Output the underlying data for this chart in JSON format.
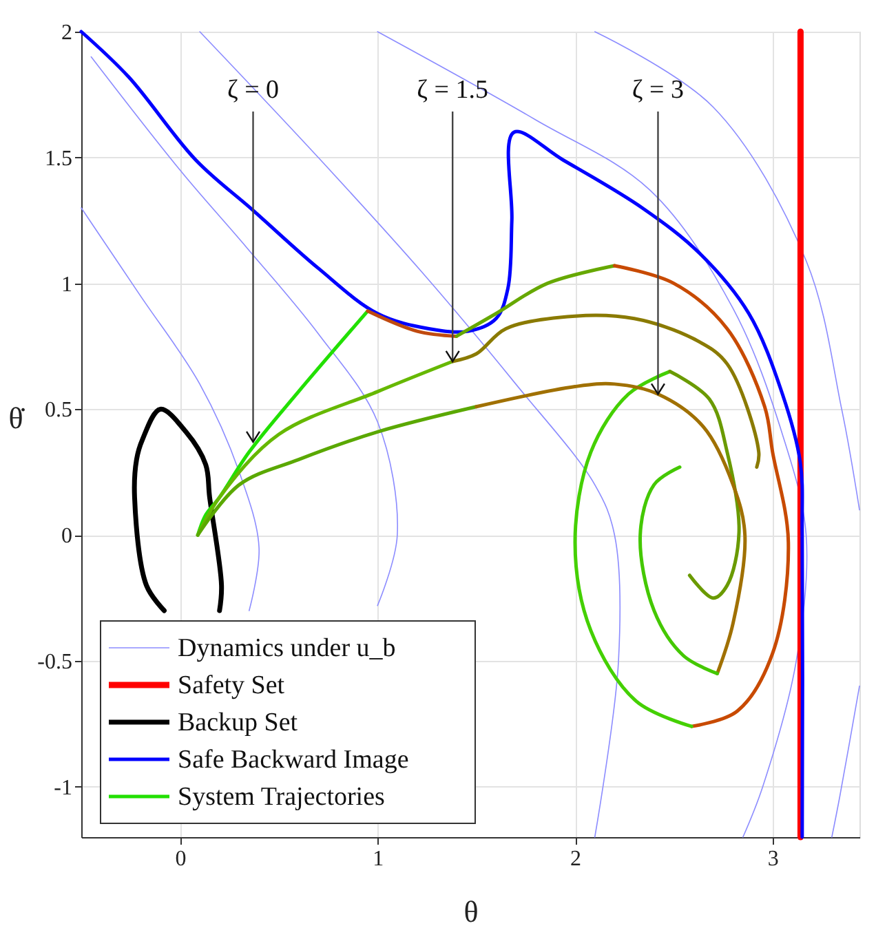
{
  "chart_data": {
    "type": "line",
    "xlabel": "θ",
    "ylabel": "θ̇",
    "xlim": [
      -0.5,
      3.44
    ],
    "ylim": [
      -1.2,
      2
    ],
    "xticks": [
      0,
      1,
      2,
      3
    ],
    "yticks": [
      -1,
      -0.5,
      0,
      0.5,
      1,
      1.5,
      2
    ],
    "grid": true,
    "legend": "bottom left",
    "line_style": "solid",
    "marker": "none",
    "annotations": [
      {
        "text": "ζ = 0",
        "x": 0.37,
        "y": 0.37
      },
      {
        "text": "ζ = 1.5",
        "x": 1.38,
        "y": 0.69
      },
      {
        "text": "ζ = 3",
        "x": 2.42,
        "y": 0.56
      }
    ],
    "series": [
      {
        "name": "Dynamics under u_b",
        "color": "#8c8cff",
        "x": [
          -0.45,
          0.0,
          0.34,
          0.7,
          1.0,
          1.1,
          1.0
        ],
        "values": [
          1.9,
          1.45,
          1.14,
          0.8,
          0.45,
          0.0,
          -0.28
        ]
      },
      {
        "color": "#8c8cff",
        "x": [
          0.1,
          0.7,
          1.23,
          1.7,
          2.1,
          2.2,
          2.22,
          2.1
        ],
        "values": [
          2.0,
          1.5,
          1.04,
          0.6,
          0.2,
          0.0,
          -0.5,
          -1.2
        ]
      },
      {
        "color": "#8c8cff",
        "x": [
          1.0,
          1.8,
          2.38,
          2.8,
          3.05,
          3.17,
          3.12,
          2.95,
          2.85
        ],
        "values": [
          2.0,
          1.65,
          1.37,
          0.9,
          0.4,
          0.0,
          -0.5,
          -1.0,
          -1.2
        ]
      },
      {
        "color": "#8c8cff",
        "x": [
          2.1,
          2.7,
          3.17,
          3.35,
          3.44
        ],
        "values": [
          2.0,
          1.7,
          1.09,
          0.5,
          0.1
        ]
      },
      {
        "color": "#8c8cff",
        "x": [
          -0.5,
          -0.2,
          0.1,
          0.3,
          0.4,
          0.35
        ],
        "values": [
          1.3,
          0.95,
          0.6,
          0.25,
          -0.05,
          -0.3
        ]
      },
      {
        "color": "#8c8cff",
        "x": [
          3.44,
          3.34,
          3.3
        ],
        "values": [
          -0.6,
          -1.04,
          -1.2
        ]
      },
      {
        "name": "Safety Set",
        "color": "#ff0000",
        "x": [
          3.1416,
          3.1416
        ],
        "values": [
          -1.2,
          2
        ]
      },
      {
        "name": "Backup Set",
        "color": "#000000",
        "x": [
          -0.08,
          -0.17,
          -0.23,
          -0.22,
          -0.19,
          -0.1,
          0.03,
          0.13,
          0.15,
          0.21,
          0.2
        ],
        "values": [
          -0.3,
          -0.2,
          0.15,
          0.3,
          0.38,
          0.5,
          0.41,
          0.28,
          0.15,
          -0.2,
          -0.3
        ]
      },
      {
        "name": "Safe Backward Image",
        "color": "#0000ff",
        "x": [
          -0.5,
          -0.26,
          0.08,
          0.37,
          0.7,
          1.0,
          1.26,
          1.46,
          1.6,
          1.66,
          1.68,
          1.69,
          1.94,
          2.34,
          2.63,
          2.88,
          3.05,
          3.14,
          3.15,
          3.15
        ],
        "values": [
          2.0,
          1.82,
          1.49,
          1.29,
          1.06,
          0.88,
          0.82,
          0.81,
          0.86,
          0.98,
          1.25,
          1.6,
          1.49,
          1.3,
          1.12,
          0.88,
          0.56,
          0.29,
          0.0,
          -1.2
        ]
      },
      {
        "name": "System Trajectories",
        "color": "#22e000",
        "x": [
          0.09,
          0.13,
          0.2,
          0.35,
          0.6,
          0.95
        ],
        "values": [
          0.0,
          0.08,
          0.15,
          0.33,
          0.57,
          0.89
        ]
      },
      {
        "color": "#c04a10",
        "x": [
          0.95,
          1.2,
          1.4
        ],
        "values": [
          0.89,
          0.81,
          0.79
        ]
      },
      {
        "color": "#66a800",
        "x": [
          1.4,
          1.6,
          1.86,
          2.2
        ],
        "values": [
          0.79,
          0.88,
          1.0,
          1.07
        ]
      },
      {
        "color": "#c84a00",
        "x": [
          2.2,
          2.5,
          2.77,
          2.96,
          3.0,
          3.08,
          3.0,
          2.82,
          2.59
        ],
        "values": [
          1.07,
          1.0,
          0.82,
          0.51,
          0.33,
          -0.03,
          -0.47,
          -0.7,
          -0.76
        ]
      },
      {
        "color": "#44d000",
        "x": [
          2.59,
          2.31,
          2.08,
          2.0,
          2.08,
          2.27,
          2.48
        ],
        "values": [
          -0.76,
          -0.66,
          -0.38,
          -0.03,
          0.33,
          0.56,
          0.65
        ]
      },
      {
        "color": "#6a9a00",
        "x": [
          2.48,
          2.68,
          2.77,
          2.83,
          2.77,
          2.7,
          2.58
        ],
        "values": [
          0.65,
          0.54,
          0.33,
          0.01,
          -0.2,
          -0.25,
          -0.16
        ]
      },
      {
        "color": "#66b800",
        "x": [
          0.09,
          0.2,
          0.5,
          1.0,
          1.38
        ],
        "values": [
          0.0,
          0.15,
          0.4,
          0.57,
          0.69
        ]
      },
      {
        "color": "#8a7a00",
        "x": [
          1.38,
          1.5,
          1.65,
          2.0,
          2.3,
          2.6,
          2.77,
          2.93,
          2.92
        ],
        "values": [
          0.69,
          0.72,
          0.82,
          0.87,
          0.86,
          0.78,
          0.68,
          0.33,
          0.27
        ]
      },
      {
        "color": "#5aa800",
        "x": [
          0.09,
          0.3,
          0.6,
          1.0,
          1.5
        ],
        "values": [
          0.0,
          0.2,
          0.3,
          0.41,
          0.51
        ]
      },
      {
        "color": "#a07000",
        "x": [
          1.5,
          2.0,
          2.2,
          2.42,
          2.65,
          2.8,
          2.86,
          2.8,
          2.72
        ],
        "values": [
          0.51,
          0.59,
          0.6,
          0.56,
          0.43,
          0.2,
          0.0,
          -0.35,
          -0.55
        ]
      },
      {
        "color": "#44c800",
        "x": [
          2.72,
          2.55,
          2.4,
          2.33,
          2.4,
          2.53
        ],
        "values": [
          -0.55,
          -0.48,
          -0.3,
          0.0,
          0.2,
          0.27
        ]
      }
    ]
  }
}
